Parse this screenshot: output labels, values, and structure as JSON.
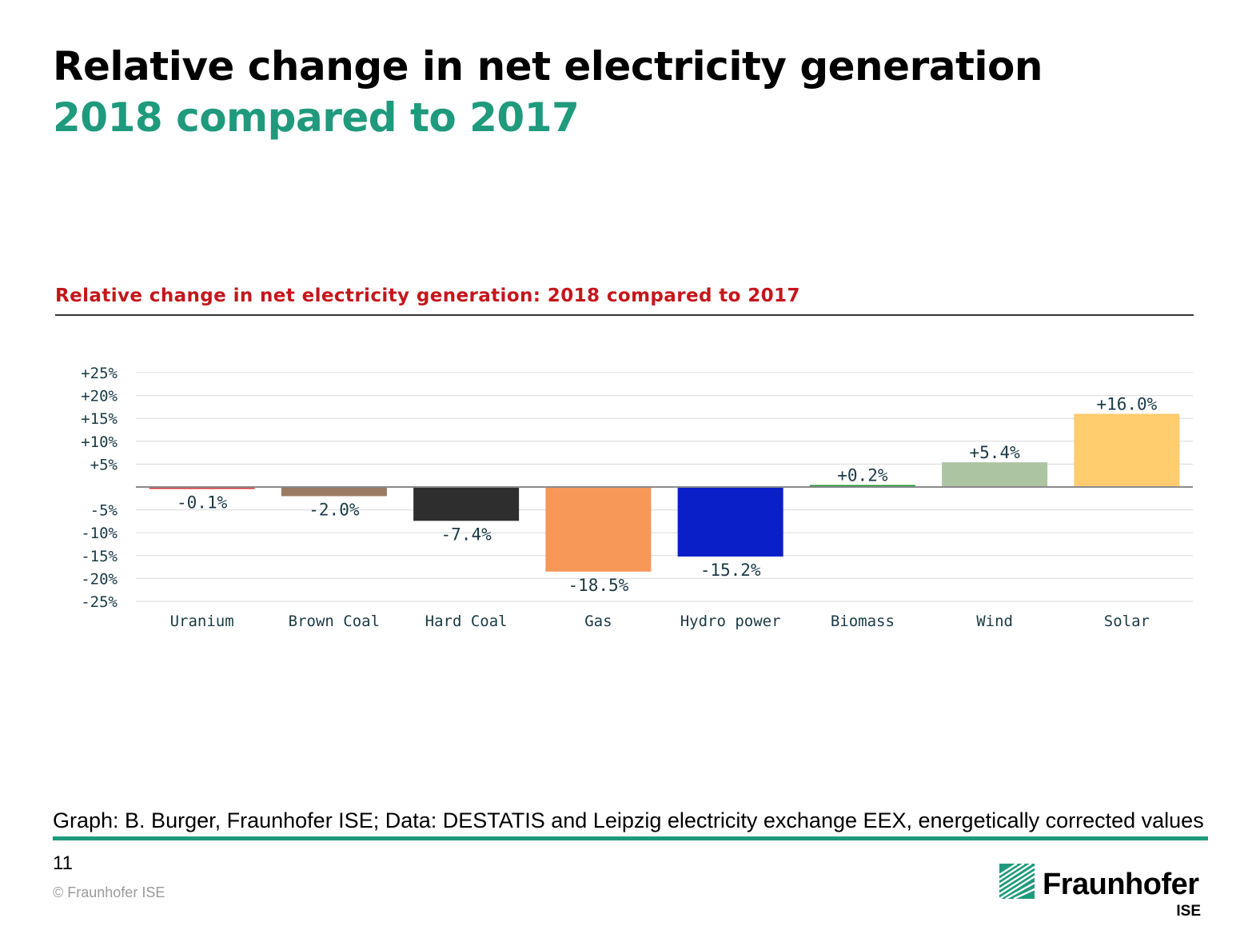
{
  "slide": {
    "title": "Relative change in net electricity generation",
    "subtitle": "2018 compared to 2017",
    "page_number": "11",
    "copyright": "© Fraunhofer ISE",
    "source": "Graph: B. Burger, Fraunhofer ISE; Data: DESTATIS and Leipzig electricity exchange EEX, energetically corrected values",
    "accent_color": "#1f9a7c",
    "chart_title_color": "#c4161c"
  },
  "logo": {
    "name": "Fraunhofer",
    "sub": "ISE",
    "icon": "fraunhofer-logo-icon",
    "color": "#1f9a7c"
  },
  "chart_data": {
    "type": "bar",
    "title": "Relative change in net electricity generation: 2018 compared to 2017",
    "xlabel": "",
    "ylabel": "",
    "categories": [
      "Uranium",
      "Brown Coal",
      "Hard Coal",
      "Gas",
      "Hydro power",
      "Biomass",
      "Wind",
      "Solar"
    ],
    "values": [
      -0.1,
      -2.0,
      -7.4,
      -18.5,
      -15.2,
      0.2,
      5.4,
      16.0
    ],
    "data_labels": [
      "-0.1%",
      "-2.0%",
      "-7.4%",
      "-18.5%",
      "-15.2%",
      "+0.2%",
      "+5.4%",
      "+16.0%"
    ],
    "colors": [
      "#d93a3a",
      "#9b7b62",
      "#2e2e2e",
      "#f79858",
      "#0a1fc8",
      "#1e9a3a",
      "#adc4a2",
      "#ffcc6e"
    ],
    "ylim": [
      -25,
      25
    ],
    "yticks": [
      25,
      20,
      15,
      10,
      5,
      -5,
      -10,
      -15,
      -20,
      -25
    ],
    "ytick_labels": [
      "+25%",
      "+20%",
      "+15%",
      "+10%",
      "+5%",
      "-5%",
      "-10%",
      "-15%",
      "-20%",
      "-25%"
    ],
    "grid": true,
    "legend": "none"
  }
}
